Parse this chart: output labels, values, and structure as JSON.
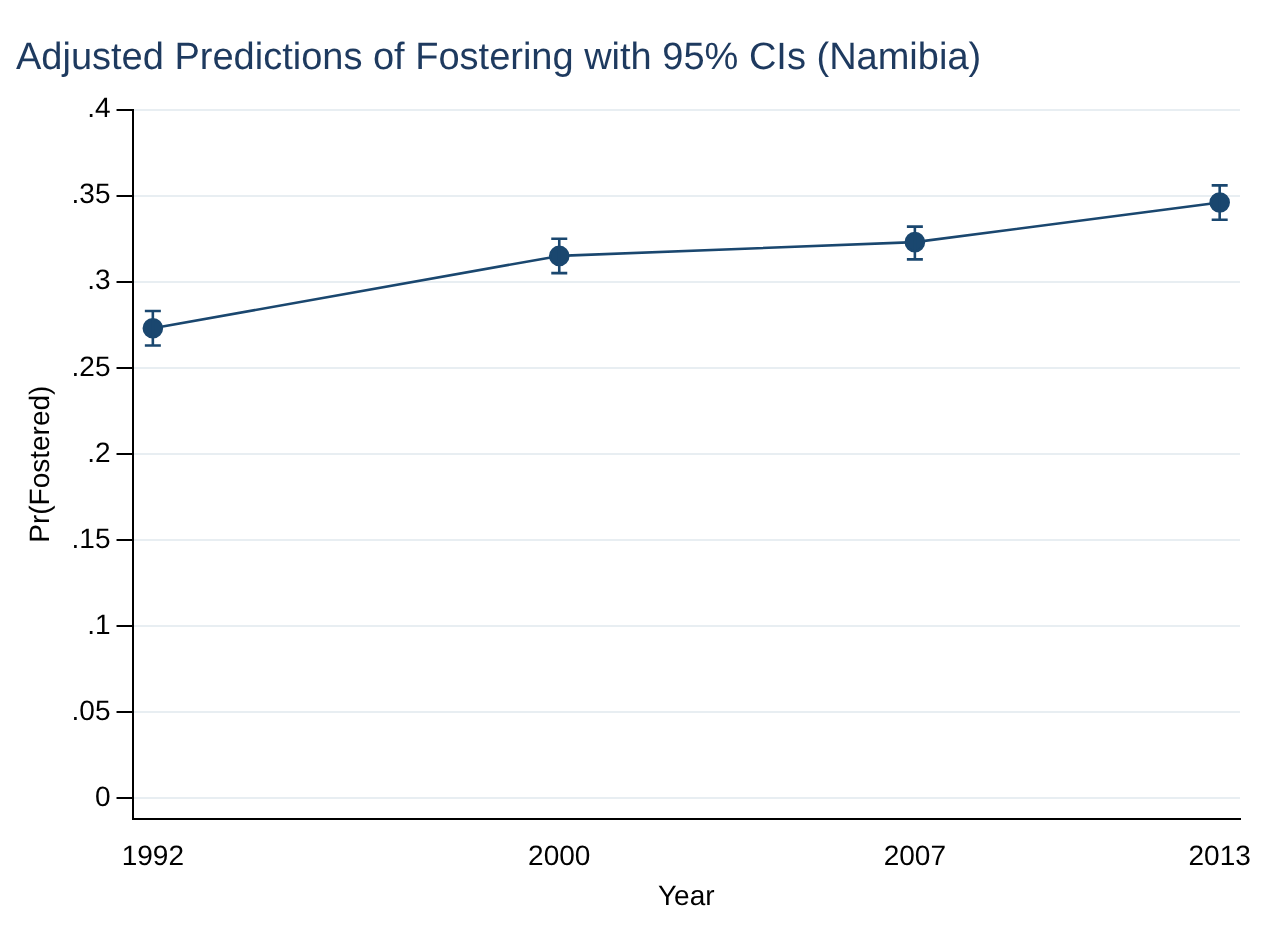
{
  "chart_data": {
    "type": "line",
    "title": "Adjusted Predictions of Fostering with 95% CIs (Namibia)",
    "xlabel": "Year",
    "ylabel": "Pr(Fostered)",
    "x": [
      1992,
      2000,
      2007,
      2013
    ],
    "series": [
      {
        "color": "#1a476f",
        "values": [
          0.273,
          0.315,
          0.323,
          0.346
        ],
        "errors": [
          [
            0.263,
            0.283
          ],
          [
            0.305,
            0.325
          ],
          [
            0.313,
            0.332
          ],
          [
            0.336,
            0.356
          ]
        ]
      }
    ],
    "xlim": [
      1991.6,
      2013.4
    ],
    "xticks": [
      1992,
      2000,
      2007,
      2013
    ],
    "ylim": [
      -0.012,
      0.4
    ],
    "yticks": [
      0,
      {
        "value": 0.05,
        "label": ".05"
      },
      {
        "value": 0.1,
        "label": ".1"
      },
      {
        "value": 0.15,
        "label": ".15"
      },
      {
        "value": 0.2,
        "label": ".2"
      },
      {
        "value": 0.25,
        "label": ".25"
      },
      {
        "value": 0.3,
        "label": ".3"
      },
      {
        "value": 0.35,
        "label": ".35"
      },
      {
        "value": 0.4,
        "label": ".4"
      }
    ],
    "grid": "y",
    "legend": false,
    "marker": "circle",
    "line_style": "solid"
  }
}
